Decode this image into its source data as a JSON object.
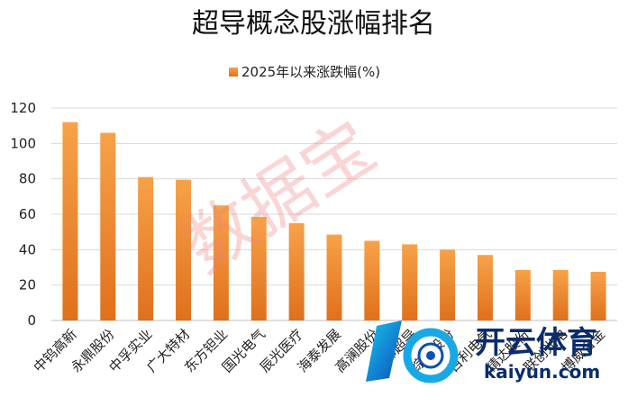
{
  "chart_data": {
    "type": "bar",
    "title": "超导概念股涨幅排名",
    "series": [
      {
        "name": "2025年以来涨跌幅(%)",
        "values": [
          112,
          106,
          81,
          79.5,
          65,
          58.5,
          55,
          48.5,
          45,
          43,
          40,
          37,
          28.5,
          28.5,
          27.5
        ]
      }
    ],
    "categories": [
      "中钨高新",
      "永鼎股份",
      "中孚实业",
      "广大特材",
      "东方钽业",
      "国光电气",
      "辰光医疗",
      "海泰发展",
      "高澜股份",
      "西部超导",
      "综艺股份",
      "百利电气",
      "精达股份",
      "联创光电",
      "博威合金"
    ],
    "ylim": [
      0,
      120
    ],
    "yticks": [
      0,
      20,
      40,
      60,
      80,
      100,
      120
    ],
    "grid": true,
    "legend": "top-center",
    "bar_color_top": "#f7a248",
    "bar_color_bottom": "#e0701c"
  },
  "watermark": "数据宝",
  "logo": {
    "name": "开云体育",
    "url": "kaiyun.com"
  }
}
